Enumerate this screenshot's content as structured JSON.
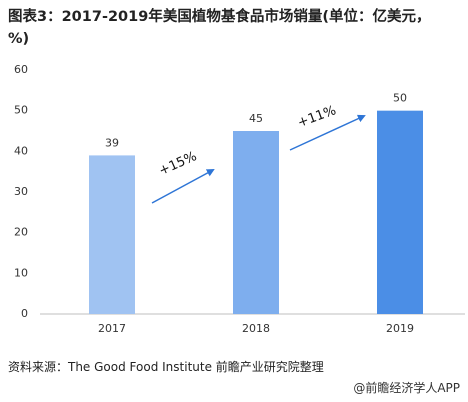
{
  "chart_data": {
    "type": "bar",
    "title": "图表3：2017-2019年美国植物基食品市场销量(单位：亿美元，%)",
    "categories": [
      "2017",
      "2018",
      "2019"
    ],
    "values": [
      39,
      45,
      50
    ],
    "colors": [
      "#a0c3f2",
      "#7eaeee",
      "#4b8ee6"
    ],
    "ylim": [
      0,
      60
    ],
    "yticks": [
      0,
      10,
      20,
      30,
      40,
      50,
      60
    ],
    "grid": false,
    "annotations": [
      "+15%",
      "+11%"
    ],
    "source": "资料来源：The Good Food Institute 前瞻产业研究院整理",
    "credit": "@前瞻经济学人APP"
  }
}
